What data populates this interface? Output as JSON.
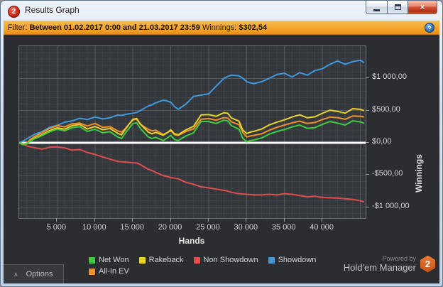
{
  "window": {
    "title": "Results Graph",
    "icon_badge": "2"
  },
  "filter_bar": {
    "label": "Filter:",
    "range_text": "Between 01.02.2017 0:00 and 21.03.2017 23:59",
    "winnings_label": "Winnings:",
    "winnings_value": "$302,54",
    "help_icon": "?"
  },
  "chart_data": {
    "type": "line",
    "xlabel": "Hands",
    "ylabel": "Winnings",
    "x_range": [
      0,
      45700
    ],
    "y_range": [
      -1170,
      1500
    ],
    "grid": {
      "minor_x_step": 1000,
      "minor_y_step": 100,
      "major_x_step": 5000,
      "major_y_step": 500
    },
    "zero_line": true,
    "colors": {
      "grid_minor": "#3e4146",
      "grid_major": "#53575d",
      "zero_line": "#ffffff",
      "plot_bg": "#34373b"
    },
    "x_ticks": [
      {
        "label": "5 000",
        "value": 5000
      },
      {
        "label": "10 000",
        "value": 10000
      },
      {
        "label": "15 000",
        "value": 15000
      },
      {
        "label": "20 000",
        "value": 20000
      },
      {
        "label": "25 000",
        "value": 25000
      },
      {
        "label": "30 000",
        "value": 30000
      },
      {
        "label": "35 000",
        "value": 35000
      },
      {
        "label": "40 000",
        "value": 40000
      }
    ],
    "y_ticks": [
      {
        "label": "$1 000,00",
        "value": 1000
      },
      {
        "label": "$500,00",
        "value": 500
      },
      {
        "label": "$0,00",
        "value": 0
      },
      {
        "label": "-$500,00",
        "value": -500
      },
      {
        "label": "-$1 000,00",
        "value": -1000
      }
    ],
    "x": [
      0,
      500,
      1000,
      1500,
      2000,
      3000,
      4000,
      5000,
      6000,
      7000,
      8000,
      9000,
      10000,
      11000,
      12000,
      13000,
      13500,
      14000,
      15000,
      15500,
      16000,
      17000,
      17500,
      18000,
      19000,
      19500,
      20000,
      20500,
      21000,
      22000,
      23000,
      24000,
      25000,
      26000,
      27000,
      27500,
      28000,
      29000,
      29500,
      30000,
      30500,
      31000,
      32000,
      33000,
      34000,
      35000,
      36000,
      37000,
      38000,
      39000,
      40000,
      41000,
      42000,
      43000,
      44000,
      45000,
      45500
    ],
    "series": [
      {
        "name": "Net Won",
        "color": "#3ecd3e",
        "values": [
          0,
          -30,
          -20,
          30,
          60,
          110,
          170,
          210,
          185,
          235,
          250,
          175,
          210,
          155,
          170,
          90,
          65,
          150,
          300,
          310,
          220,
          95,
          65,
          85,
          35,
          70,
          115,
          50,
          35,
          105,
          155,
          330,
          330,
          300,
          350,
          340,
          265,
          210,
          70,
          15,
          35,
          45,
          75,
          135,
          175,
          205,
          245,
          275,
          225,
          235,
          285,
          330,
          305,
          275,
          340,
          325,
          302
        ]
      },
      {
        "name": "Rakeback",
        "color": "#e9d327",
        "values": [
          0,
          -28,
          -16,
          36,
          69,
          123,
          187,
          232,
          211,
          265,
          284,
          214,
          253,
          202,
          222,
          146,
          123,
          210,
          365,
          377,
          289,
          168,
          140,
          162,
          117,
          154,
          201,
          138,
          125,
          200,
          254,
          433,
          438,
          412,
          466,
          458,
          385,
          335,
          197,
          144,
          166,
          178,
          213,
          277,
          321,
          356,
          400,
          434,
          388,
          403,
          457,
          506,
          486,
          460,
          529,
          519,
          498
        ]
      },
      {
        "name": "Non Showdown",
        "color": "#e14e4e",
        "values": [
          0,
          -25,
          -50,
          -65,
          -75,
          -100,
          -70,
          -65,
          -80,
          -115,
          -105,
          -150,
          -180,
          -220,
          -255,
          -290,
          -295,
          -300,
          -310,
          -315,
          -340,
          -410,
          -430,
          -460,
          -510,
          -525,
          -540,
          -550,
          -560,
          -615,
          -645,
          -685,
          -700,
          -720,
          -740,
          -750,
          -770,
          -790,
          -795,
          -800,
          -805,
          -810,
          -810,
          -800,
          -810,
          -790,
          -800,
          -820,
          -840,
          -830,
          -850,
          -855,
          -860,
          -870,
          -880,
          -900,
          -920
        ]
      },
      {
        "name": "Showdown",
        "color": "#3e9ade",
        "values": [
          0,
          25,
          60,
          95,
          130,
          170,
          240,
          270,
          320,
          340,
          380,
          360,
          400,
          370,
          390,
          430,
          425,
          440,
          460,
          470,
          500,
          570,
          590,
          620,
          660,
          650,
          630,
          560,
          520,
          600,
          720,
          740,
          760,
          880,
          1000,
          1030,
          1050,
          1040,
          1000,
          950,
          930,
          920,
          950,
          1000,
          1060,
          1080,
          1020,
          1090,
          1050,
          1120,
          1150,
          1220,
          1270,
          1220,
          1260,
          1280,
          1245
        ]
      },
      {
        "name": "All-In EV",
        "color": "#f0902b",
        "values": [
          0,
          -20,
          -5,
          55,
          95,
          155,
          220,
          265,
          245,
          295,
          305,
          260,
          300,
          240,
          250,
          185,
          165,
          220,
          355,
          365,
          285,
          210,
          185,
          195,
          130,
          155,
          185,
          125,
          115,
          175,
          215,
          365,
          375,
          350,
          390,
          385,
          325,
          280,
          160,
          90,
          105,
          115,
          140,
          195,
          240,
          275,
          310,
          335,
          300,
          315,
          360,
          400,
          390,
          365,
          415,
          410,
          402
        ]
      }
    ],
    "legend_order": [
      "Net Won",
      "Rakeback",
      "Non Showdown",
      "Showdown",
      "All-In EV"
    ],
    "draw_order": [
      "Non Showdown",
      "Showdown",
      "All-In EV",
      "Rakeback",
      "Net Won"
    ],
    "legend_position": "bottom"
  },
  "footer": {
    "options_label": "Options",
    "powered_by": "Powered by",
    "brand": "Hold'em Manager",
    "brand_badge": "2"
  }
}
